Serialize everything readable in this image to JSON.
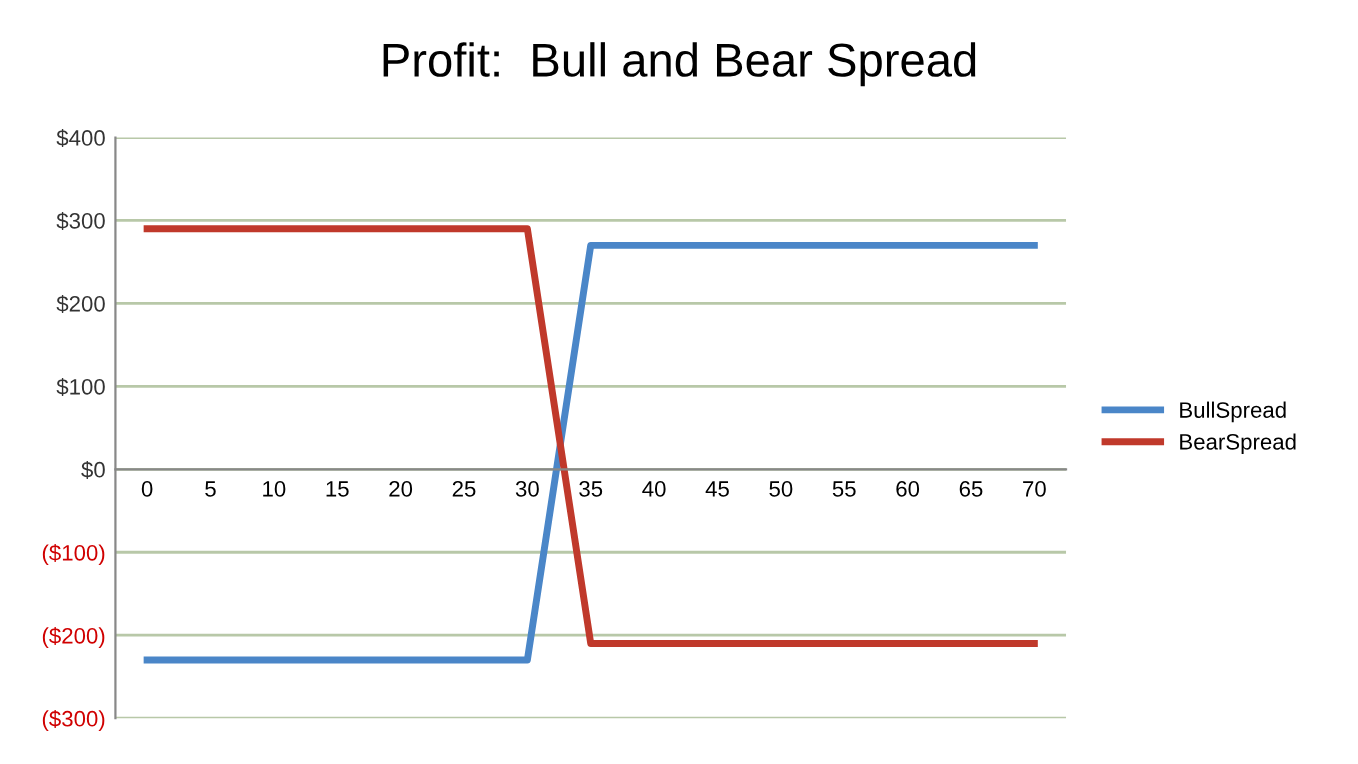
{
  "chart_data": {
    "type": "line",
    "title": "Profit:  Bull and Bear Spread",
    "categories": [
      "0",
      "5",
      "10",
      "15",
      "20",
      "25",
      "30",
      "35",
      "40",
      "45",
      "50",
      "55",
      "60",
      "65",
      "70"
    ],
    "series": [
      {
        "name": "BullSpread",
        "color": "#4a86c8",
        "values": [
          -230,
          -230,
          -230,
          -230,
          -230,
          -230,
          -230,
          270,
          270,
          270,
          270,
          270,
          270,
          270,
          270
        ]
      },
      {
        "name": "BearSpread",
        "color": "#c0392b",
        "values": [
          290,
          290,
          290,
          290,
          290,
          290,
          290,
          -210,
          -210,
          -210,
          -210,
          -210,
          -210,
          -210,
          -210
        ]
      }
    ],
    "ylim": [
      -300,
      400
    ],
    "yticks": [
      {
        "value": -300,
        "label": "($300)"
      },
      {
        "value": -200,
        "label": "($200)"
      },
      {
        "value": -100,
        "label": "($100)"
      },
      {
        "value": 0,
        "label": "$0"
      },
      {
        "value": 100,
        "label": "$100"
      },
      {
        "value": 200,
        "label": "$200"
      },
      {
        "value": 300,
        "label": "$300"
      },
      {
        "value": 400,
        "label": "$400"
      }
    ],
    "grid": "y",
    "legend": "right",
    "line_style": "solid",
    "marker": "none"
  }
}
